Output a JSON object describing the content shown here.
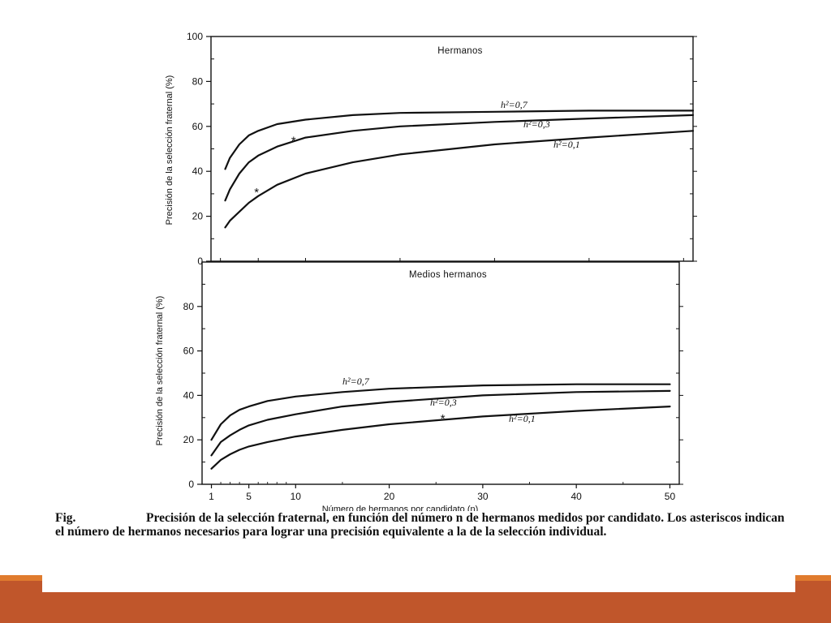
{
  "figure": {
    "caption": {
      "label": "Fig.",
      "text": "Precisión de la selección fraternal, en función del número n de hermanos medidos por candidato. Los asteriscos indican el número de hermanos necesarios para lograr una precisión equivalente a la de la selección individual."
    }
  },
  "chart_data": [
    {
      "type": "line",
      "title": "Hermanos",
      "xlabel": "",
      "ylabel": "Precisión de la selección fraternal (%)",
      "xlim": [
        0,
        51
      ],
      "ylim": [
        0,
        100
      ],
      "yticks": [
        0,
        20,
        40,
        60,
        80,
        100
      ],
      "series": [
        {
          "name": "h²=0,7",
          "x": [
            1.5,
            2,
            3,
            4,
            5,
            7,
            10,
            15,
            20,
            30,
            40,
            51
          ],
          "y": [
            41,
            46,
            52,
            56,
            58,
            61,
            63,
            65,
            66,
            66.5,
            67,
            67
          ]
        },
        {
          "name": "h²=0,3",
          "x": [
            1.5,
            2,
            3,
            4,
            5,
            7,
            10,
            15,
            20,
            30,
            40,
            51
          ],
          "y": [
            27,
            32,
            39,
            44,
            47,
            51,
            55,
            58,
            60,
            62,
            63.5,
            65
          ]
        },
        {
          "name": "h²=0,1",
          "x": [
            1.5,
            2,
            3,
            4,
            5,
            7,
            10,
            15,
            20,
            30,
            40,
            51
          ],
          "y": [
            15,
            18,
            22,
            26,
            29,
            34,
            39,
            44,
            47.5,
            52,
            55,
            58
          ]
        }
      ],
      "annotations": [
        {
          "text": "*",
          "x": 9,
          "y": 54
        },
        {
          "text": "*",
          "x": 5,
          "y": 31
        }
      ]
    },
    {
      "type": "line",
      "title": "Medios hermanos",
      "xlabel": "Número de hermanos por candidato (n)",
      "ylabel": "Precisión de la selección fraternal (%)",
      "xlim": [
        0,
        51
      ],
      "ylim": [
        0,
        100
      ],
      "xticks": [
        1,
        5,
        10,
        20,
        30,
        40,
        50
      ],
      "yticks": [
        0,
        20,
        40,
        60,
        80
      ],
      "series": [
        {
          "name": "h²=0,7",
          "x": [
            1,
            2,
            3,
            4,
            5,
            7,
            10,
            15,
            20,
            30,
            40,
            50
          ],
          "y": [
            20,
            27,
            31,
            33.5,
            35,
            37.5,
            39.5,
            41.5,
            43,
            44.5,
            45,
            45
          ]
        },
        {
          "name": "h²=0,3",
          "x": [
            1,
            2,
            3,
            4,
            5,
            7,
            10,
            15,
            20,
            30,
            40,
            50
          ],
          "y": [
            13,
            19,
            22,
            24.5,
            26.5,
            29,
            31.5,
            35,
            37,
            40,
            41.5,
            42
          ]
        },
        {
          "name": "h²=0,1",
          "x": [
            1,
            2,
            3,
            4,
            5,
            7,
            10,
            15,
            20,
            30,
            40,
            50
          ],
          "y": [
            7,
            11,
            13.5,
            15.5,
            17,
            19,
            21.5,
            24.5,
            27,
            30.5,
            33,
            35
          ]
        }
      ],
      "annotations": [
        {
          "text": "*",
          "x": 26,
          "y": 30
        }
      ]
    }
  ]
}
